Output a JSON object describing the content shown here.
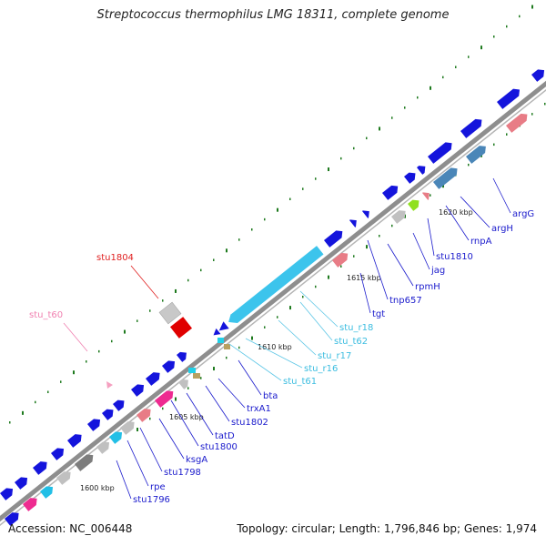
{
  "title": "Streptococcus thermophilus LMG 18311, complete genome",
  "footer": {
    "accession": "Accession: NC_006448",
    "summary": "Topology: circular; Length: 1,796,846 bp; Genes: 1,974"
  },
  "ticks": [
    "1600 kbp",
    "1605 kbp",
    "1610 kbp",
    "1615 kbp",
    "1620 kbp"
  ],
  "gene_labels": [
    {
      "text": "argG",
      "color": "#1a1acc"
    },
    {
      "text": "argH",
      "color": "#1a1acc"
    },
    {
      "text": "rnpA",
      "color": "#1a1acc"
    },
    {
      "text": "stu1810",
      "color": "#1a1acc"
    },
    {
      "text": "jag",
      "color": "#1a1acc"
    },
    {
      "text": "rpmH",
      "color": "#1a1acc"
    },
    {
      "text": "tnp657",
      "color": "#1a1acc"
    },
    {
      "text": "tgt",
      "color": "#1a1acc"
    },
    {
      "text": "stu_r18",
      "color": "#3bbde0"
    },
    {
      "text": "stu_t62",
      "color": "#3bbde0"
    },
    {
      "text": "stu_r17",
      "color": "#3bbde0"
    },
    {
      "text": "stu_r16",
      "color": "#3bbde0"
    },
    {
      "text": "stu_t61",
      "color": "#3bbde0"
    },
    {
      "text": "bta",
      "color": "#1a1acc"
    },
    {
      "text": "trxA1",
      "color": "#1a1acc"
    },
    {
      "text": "stu1802",
      "color": "#1a1acc"
    },
    {
      "text": "tatD",
      "color": "#1a1acc"
    },
    {
      "text": "stu1800",
      "color": "#1a1acc"
    },
    {
      "text": "ksgA",
      "color": "#1a1acc"
    },
    {
      "text": "stu1798",
      "color": "#1a1acc"
    },
    {
      "text": "rpe",
      "color": "#1a1acc"
    },
    {
      "text": "stu1796",
      "color": "#1a1acc"
    },
    {
      "text": "stu1804",
      "color": "#e02020"
    },
    {
      "text": "stu_t60",
      "color": "#f080b0"
    }
  ]
}
